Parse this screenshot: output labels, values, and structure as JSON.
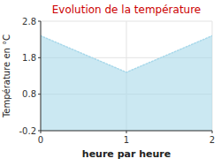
{
  "chart_data": {
    "type": "area",
    "title": "Evolution de la température",
    "xlabel": "heure par heure",
    "ylabel": "Température en °C",
    "x": [
      0,
      1,
      2
    ],
    "values": [
      2.4,
      1.4,
      2.4
    ],
    "xlim": [
      0,
      2
    ],
    "ylim": [
      -0.2,
      2.8
    ],
    "xticks": [
      0,
      1,
      2
    ],
    "yticks": [
      -0.2,
      0.8,
      1.8,
      2.8
    ],
    "color": "#a8d8ea",
    "line_style": "dotted",
    "grid": true
  }
}
